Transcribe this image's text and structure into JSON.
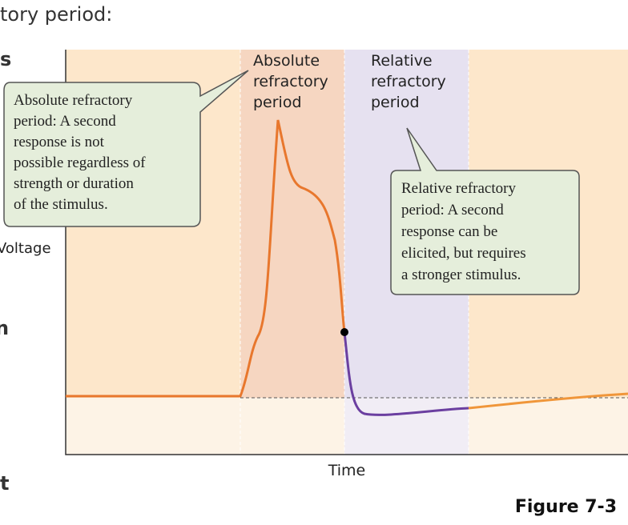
{
  "header": {
    "title": "tory period:"
  },
  "side": {
    "top": "s",
    "middle": "n",
    "bottom": "t"
  },
  "axes": {
    "y_label": "Voltage",
    "x_label": "Time"
  },
  "bands": [
    {
      "label": [
        "Absolute",
        "refractory",
        "period"
      ]
    },
    {
      "label": [
        "Relative",
        "refractory",
        "period"
      ]
    }
  ],
  "callouts": [
    {
      "lines": [
        "Absolute refractory",
        "period: A second",
        "response is not",
        "possible regardless of",
        "strength or duration",
        "of the stimulus."
      ]
    },
    {
      "lines": [
        "Relative refractory",
        "period: A second",
        "response can be",
        "elicited, but requires",
        "a stronger stimulus."
      ]
    }
  ],
  "caption": "Figure 7-3"
}
